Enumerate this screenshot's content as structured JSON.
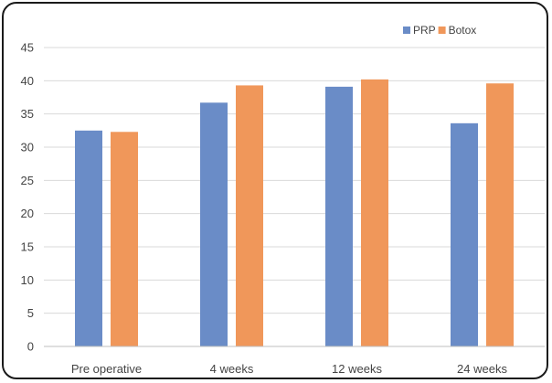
{
  "chart_data": {
    "type": "bar",
    "categories": [
      "Pre operative",
      "4 weeks",
      "12 weeks",
      "24 weeks"
    ],
    "series": [
      {
        "name": "PRP",
        "color": "#6a8cc7",
        "values": [
          32.5,
          36.7,
          39.1,
          33.6
        ]
      },
      {
        "name": "Botox",
        "color": "#f0975a",
        "values": [
          32.3,
          39.3,
          40.2,
          39.6
        ]
      }
    ],
    "title": "",
    "xlabel": "",
    "ylabel": "",
    "ylim": [
      0,
      45
    ],
    "yticks": [
      "0",
      "5",
      "10",
      "15",
      "20",
      "25",
      "30",
      "35",
      "40",
      "45"
    ],
    "grid": true,
    "legend_position": "top-right",
    "colors": {
      "gridline": "#d9d9d9",
      "axis": "#bfbfbf",
      "frame": "#1a1a1a"
    }
  }
}
